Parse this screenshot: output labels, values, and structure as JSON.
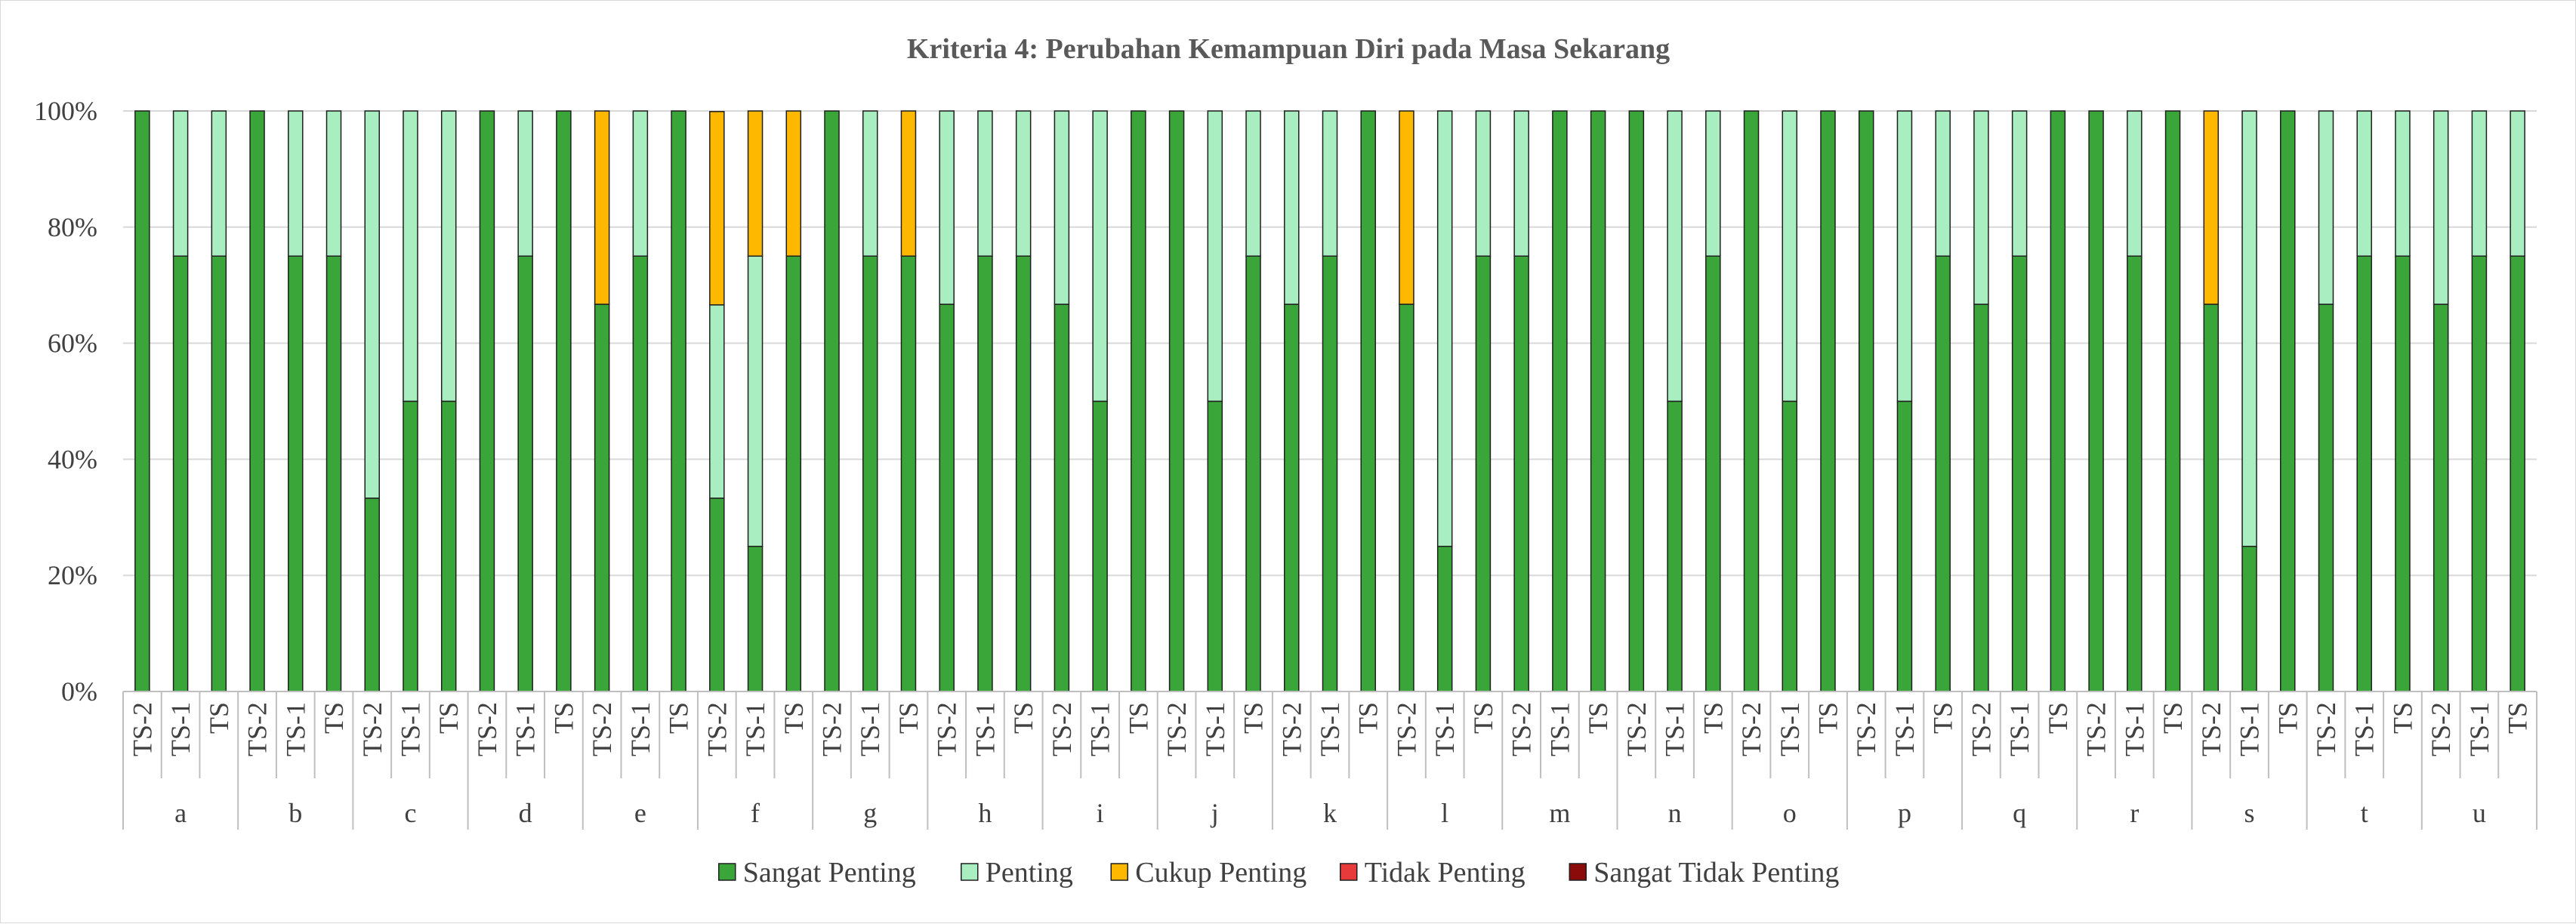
{
  "chart_data": {
    "type": "bar",
    "stacked": "percent",
    "title": "Kriteria 4: Perubahan Kemampuan Diri pada Masa Sekarang",
    "xlabel": "",
    "ylabel": "",
    "ylim": [
      0,
      100
    ],
    "y_ticks": [
      "0%",
      "20%",
      "40%",
      "60%",
      "80%",
      "100%"
    ],
    "grid": true,
    "legend_position": "bottom",
    "groups": [
      "a",
      "b",
      "c",
      "d",
      "e",
      "f",
      "g",
      "h",
      "i",
      "j",
      "k",
      "l",
      "m",
      "n",
      "o",
      "p",
      "q",
      "r",
      "s",
      "t",
      "u"
    ],
    "subcategories": [
      "TS-2",
      "TS-1",
      "TS"
    ],
    "series": [
      {
        "name": "Sangat Penting",
        "color": "#3aa63a",
        "values": [
          100,
          75,
          75,
          100,
          75,
          75,
          33.3,
          50,
          50,
          100,
          75,
          100,
          66.7,
          75,
          100,
          33.3,
          25,
          75,
          100,
          75,
          75,
          66.7,
          75,
          75,
          66.7,
          50,
          100,
          100,
          50,
          75,
          66.7,
          75,
          100,
          66.7,
          25,
          75,
          75,
          100,
          100,
          100,
          50,
          75,
          100,
          50,
          100,
          100,
          50,
          75,
          66.7,
          75,
          100,
          100,
          75,
          100,
          66.7,
          25,
          100,
          66.7,
          75,
          75,
          66.7,
          75,
          75
        ]
      },
      {
        "name": "Penting",
        "color": "#a9eec0",
        "values": [
          0,
          25,
          25,
          0,
          25,
          25,
          66.7,
          50,
          50,
          0,
          25,
          0,
          0,
          25,
          0,
          33.3,
          50,
          0,
          0,
          25,
          0,
          33.3,
          25,
          25,
          33.3,
          50,
          0,
          0,
          50,
          25,
          33.3,
          25,
          0,
          0,
          75,
          25,
          25,
          0,
          0,
          0,
          50,
          25,
          0,
          50,
          0,
          0,
          50,
          25,
          33.3,
          25,
          0,
          0,
          25,
          0,
          0,
          75,
          0,
          33.3,
          25,
          25,
          33.3,
          25,
          25
        ]
      },
      {
        "name": "Cukup Penting",
        "color": "#ffb800",
        "values": [
          0,
          0,
          0,
          0,
          0,
          0,
          0,
          0,
          0,
          0,
          0,
          0,
          33.3,
          0,
          0,
          33.3,
          25,
          25,
          0,
          0,
          25,
          0,
          0,
          0,
          0,
          0,
          0,
          0,
          0,
          0,
          0,
          0,
          0,
          33.3,
          0,
          0,
          0,
          0,
          0,
          0,
          0,
          0,
          0,
          0,
          0,
          0,
          0,
          0,
          0,
          0,
          0,
          0,
          0,
          0,
          33.3,
          0,
          0,
          0,
          0,
          0,
          0,
          0,
          0
        ]
      },
      {
        "name": "Tidak Penting",
        "color": "#e83a3a",
        "values": [
          0,
          0,
          0,
          0,
          0,
          0,
          0,
          0,
          0,
          0,
          0,
          0,
          0,
          0,
          0,
          0,
          0,
          0,
          0,
          0,
          0,
          0,
          0,
          0,
          0,
          0,
          0,
          0,
          0,
          0,
          0,
          0,
          0,
          0,
          0,
          0,
          0,
          0,
          0,
          0,
          0,
          0,
          0,
          0,
          0,
          0,
          0,
          0,
          0,
          0,
          0,
          0,
          0,
          0,
          0,
          0,
          0,
          0,
          0,
          0,
          0,
          0,
          0
        ]
      },
      {
        "name": "Sangat Tidak Penting",
        "color": "#8b0a0a",
        "values": [
          0,
          0,
          0,
          0,
          0,
          0,
          0,
          0,
          0,
          0,
          0,
          0,
          0,
          0,
          0,
          0,
          0,
          0,
          0,
          0,
          0,
          0,
          0,
          0,
          0,
          0,
          0,
          0,
          0,
          0,
          0,
          0,
          0,
          0,
          0,
          0,
          0,
          0,
          0,
          0,
          0,
          0,
          0,
          0,
          0,
          0,
          0,
          0,
          0,
          0,
          0,
          0,
          0,
          0,
          0,
          0,
          0,
          0,
          0,
          0,
          0,
          0,
          0
        ]
      }
    ]
  }
}
